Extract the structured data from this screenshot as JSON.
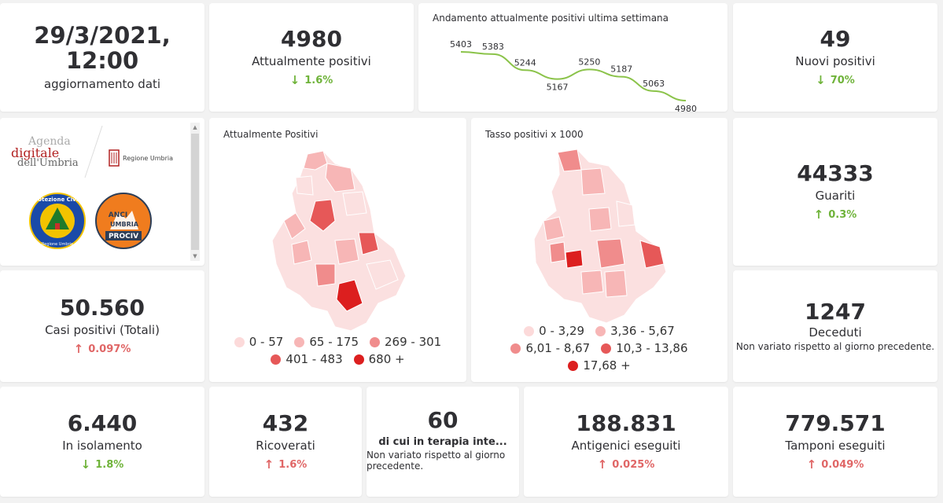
{
  "update": {
    "datetime": "29/3/2021, 12:00",
    "label": "aggiornamento dati"
  },
  "attualmente_positivi": {
    "value": "4980",
    "label": "Attualmente positivi",
    "change": "1.6%",
    "direction": "down"
  },
  "trend": {
    "title": "Andamento attualmente positivi ultima settimana",
    "chart_data": {
      "type": "line",
      "title": "Andamento attualmente positivi ultima settimana",
      "x": [
        1,
        2,
        3,
        4,
        5,
        6,
        7,
        8
      ],
      "values": [
        5403,
        5383,
        5244,
        5167,
        5250,
        5187,
        5063,
        4980
      ],
      "labels": [
        "5403",
        "5383",
        "5244",
        "5167",
        "5250",
        "5187",
        "5063",
        "4980"
      ],
      "color": "#8bc34a",
      "grid": false
    }
  },
  "nuovi_positivi": {
    "value": "49",
    "label": "Nuovi positivi",
    "change": "70%",
    "direction": "down"
  },
  "logos": {
    "agenda_line1": "Agenda",
    "agenda_line2": "digitale",
    "agenda_line3": "dell'Umbria",
    "regione": "Regione Umbria",
    "protezione": "Protezione Civile",
    "protezione_sub": "Regione Umbria",
    "anci_line1": "ANCI",
    "anci_line2": "UMBRIA",
    "anci_line3": "PROCIV"
  },
  "map_positivi": {
    "title": "Attualmente Positivi",
    "legend": [
      {
        "label": "0 - 57",
        "color": "#fcdada"
      },
      {
        "label": "65 - 175",
        "color": "#f7b6b6"
      },
      {
        "label": "269 - 301",
        "color": "#f08c8c"
      },
      {
        "label": "401 - 483",
        "color": "#e65858"
      },
      {
        "label": "680 +",
        "color": "#dc1f1f"
      }
    ]
  },
  "map_tasso": {
    "title": "Tasso positivi x 1000",
    "legend": [
      {
        "label": "0 - 3,29",
        "color": "#fcdada"
      },
      {
        "label": "3,36 - 5,67",
        "color": "#f7b6b6"
      },
      {
        "label": "6,01 - 8,67",
        "color": "#f08c8c"
      },
      {
        "label": "10,3 - 13,86",
        "color": "#e65858"
      },
      {
        "label": "17,68 +",
        "color": "#dc1f1f"
      }
    ]
  },
  "guariti": {
    "value": "44333",
    "label": "Guariti",
    "change": "0.3%",
    "direction": "up"
  },
  "casi_totali": {
    "value": "50.560",
    "label": "Casi positivi (Totali)",
    "change": "0.097%",
    "direction": "up"
  },
  "deceduti": {
    "value": "1247",
    "label": "Deceduti",
    "note": "Non variato rispetto al giorno precedente."
  },
  "isolamento": {
    "value": "6.440",
    "label": "In isolamento",
    "change": "1.8%",
    "direction": "down"
  },
  "ricoverati": {
    "value": "432",
    "label": "Ricoverati",
    "change": "1.6%",
    "direction": "up"
  },
  "terapia": {
    "value": "60",
    "label": "di cui in terapia inte...",
    "note": "Non variato rispetto al giorno precedente."
  },
  "antigenici": {
    "value": "188.831",
    "label": "Antigenici eseguiti",
    "change": "0.025%",
    "direction": "up"
  },
  "tamponi": {
    "value": "779.571",
    "label": "Tamponi eseguiti",
    "change": "0.049%",
    "direction": "up"
  },
  "colors": {
    "down": "#6fb33a",
    "up": "#e06666",
    "line": "#8bc34a"
  }
}
